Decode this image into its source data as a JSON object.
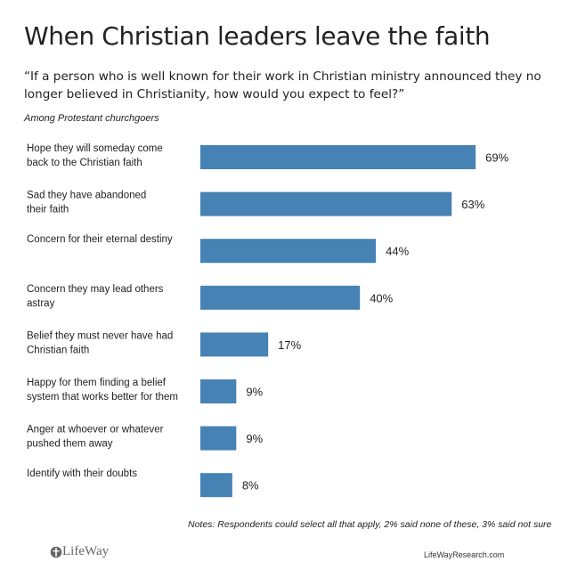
{
  "title": "When Christian leaders leave the faith",
  "question": "“If a person who is well known for their work in Christian ministry announced they no longer believed in Christianity, how would you expect to feel?”",
  "subtitle": "Among Protestant churchgoers",
  "notes": "Notes: Respondents could select all that apply,  2% said none of these, 3% said not sure",
  "brand": {
    "logo_text": "LifeWay",
    "website": "LifeWayResearch.com"
  },
  "colors": {
    "bar": "#4682b4",
    "text": "#222222"
  },
  "chart_data": {
    "type": "bar",
    "orientation": "horizontal",
    "categories": [
      [
        "Hope they will someday come",
        "back to the Christian faith"
      ],
      [
        "Sad they have abandoned",
        "their faith"
      ],
      [
        "Concern for their eternal destiny"
      ],
      [
        "Concern they may lead others",
        "astray"
      ],
      [
        "Belief they must never have had",
        "Christian faith"
      ],
      [
        "Happy for them finding a belief",
        "system that works better for them"
      ],
      [
        "Anger at whoever or whatever",
        "pushed them away"
      ],
      [
        "Identify with their doubts"
      ]
    ],
    "values": [
      69,
      63,
      44,
      40,
      17,
      9,
      9,
      8
    ],
    "value_labels": [
      "69%",
      "63%",
      "44%",
      "40%",
      "17%",
      "9%",
      "9%",
      "8%"
    ],
    "unit": "%",
    "xlim": [
      0,
      100
    ],
    "grid": false,
    "legend": "none"
  }
}
